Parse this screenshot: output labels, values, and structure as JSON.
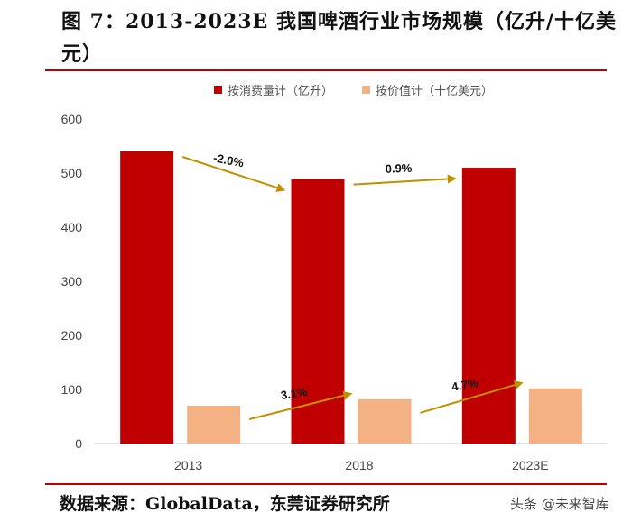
{
  "title": "图 7：2013-2023E 我国啤酒行业市场规模（亿升/十亿美元）",
  "source": "数据来源：GlobalData，东莞证券研究所",
  "watermark": "头条 @未来智库",
  "colors": {
    "volume": "#c00000",
    "value": "#f4b183",
    "arrow": "#c09000",
    "rule": "#c00000"
  },
  "chart_data": {
    "type": "bar",
    "categories": [
      "2013",
      "2018",
      "2023E"
    ],
    "series": [
      {
        "name": "按消费量计（亿升）",
        "values": [
          540,
          489,
          510
        ]
      },
      {
        "name": "按价值计（十亿美元）",
        "values": [
          70,
          82,
          102
        ]
      }
    ],
    "ylim": [
      0,
      600
    ],
    "yticks": [
      0,
      100,
      200,
      300,
      400,
      500,
      600
    ],
    "legend_position": "top",
    "grid": false,
    "annotations": [
      {
        "series": 0,
        "from": 0,
        "to": 1,
        "label": "-2.0%"
      },
      {
        "series": 0,
        "from": 1,
        "to": 2,
        "label": "0.9%"
      },
      {
        "series": 1,
        "from": 0,
        "to": 1,
        "label": "3.1%"
      },
      {
        "series": 1,
        "from": 1,
        "to": 2,
        "label": "4.7%"
      }
    ]
  }
}
